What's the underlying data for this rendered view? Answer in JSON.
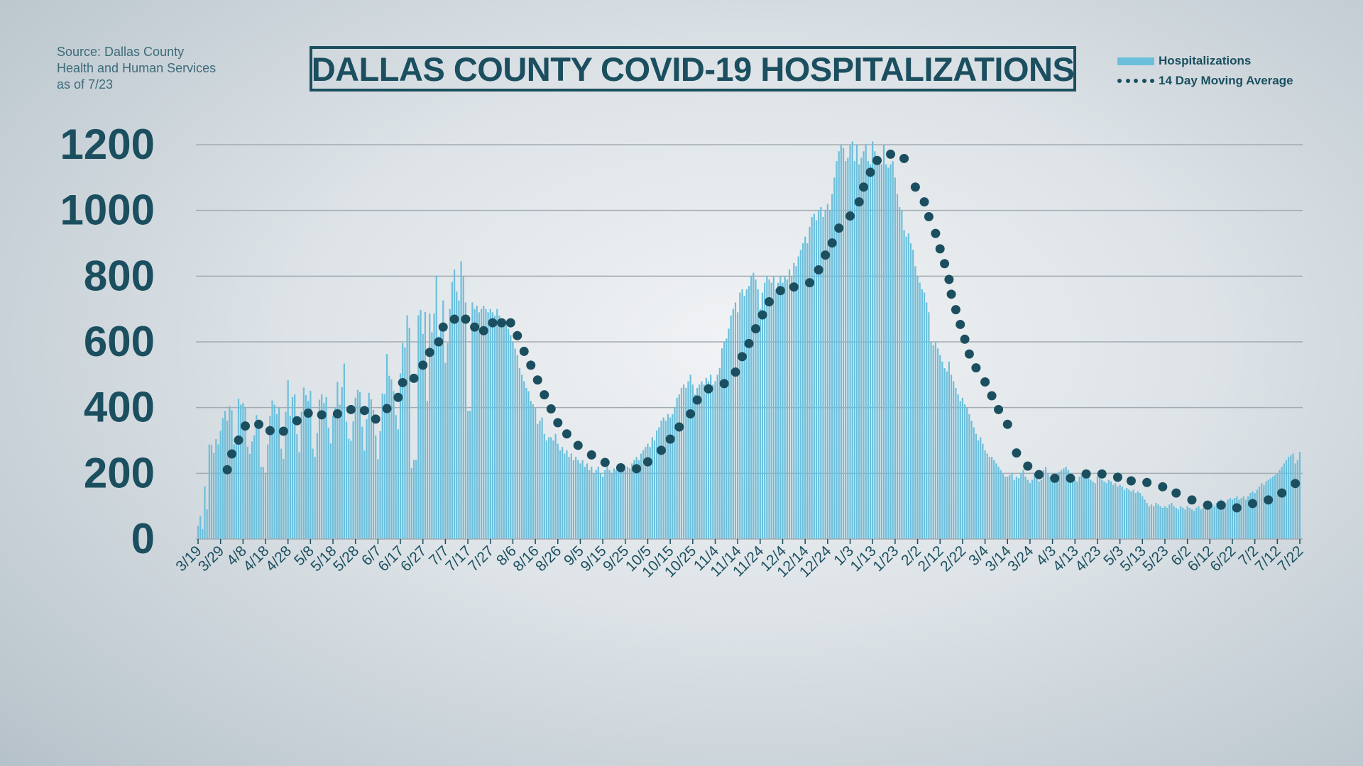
{
  "source": {
    "line1": "Source: Dallas County",
    "line2": "Health and Human Services",
    "line3": "as of 7/23"
  },
  "colors": {
    "bar": "#6cbfdb",
    "dot": "#1b4f5f",
    "text": "#1b4f5f",
    "grid": "#a3acb2"
  },
  "chart_data": {
    "type": "bar",
    "title": "DALLAS COUNTY COVID-19 HOSPITALIZATIONS",
    "xlabel": "",
    "ylabel": "",
    "ylim": [
      0,
      1200
    ],
    "yticks": [
      0,
      200,
      400,
      600,
      800,
      1000,
      1200
    ],
    "grid": true,
    "legend_position": "top-right",
    "legend": [
      "Hospitalizations",
      "14 Day Moving Average"
    ],
    "xtick_labels": [
      "3/19",
      "3/29",
      "4/8",
      "4/18",
      "4/28",
      "5/8",
      "5/18",
      "5/28",
      "6/7",
      "6/17",
      "6/27",
      "7/7",
      "7/17",
      "7/27",
      "8/6",
      "8/16",
      "8/26",
      "9/5",
      "9/15",
      "9/25",
      "10/5",
      "10/15",
      "10/25",
      "11/4",
      "11/14",
      "11/24",
      "12/4",
      "12/14",
      "12/24",
      "1/3",
      "1/13",
      "1/23",
      "2/2",
      "2/12",
      "2/22",
      "3/4",
      "3/14",
      "3/24",
      "4/3",
      "4/13",
      "4/23",
      "5/3",
      "5/13",
      "5/23",
      "6/2",
      "6/12",
      "6/22",
      "7/2",
      "7/12",
      "7/22"
    ],
    "series": [
      {
        "name": "Hospitalizations",
        "type": "bar",
        "first_date": "3/19",
        "daily_values": [
          40,
          70,
          30,
          160,
          90,
          288,
          286,
          262,
          304,
          288,
          329,
          368,
          390,
          360,
          405,
          392,
          289,
          297,
          427,
          409,
          414,
          402,
          281,
          259,
          297,
          316,
          377,
          363,
          220,
          219,
          200,
          288,
          374,
          422,
          409,
          380,
          400,
          275,
          244,
          387,
          483,
          375,
          432,
          440,
          319,
          264,
          387,
          461,
          438,
          420,
          451,
          275,
          250,
          323,
          424,
          440,
          414,
          432,
          339,
          291,
          375,
          400,
          478,
          409,
          462,
          534,
          357,
          305,
          299,
          358,
          430,
          454,
          447,
          342,
          269,
          365,
          445,
          425,
          393,
          315,
          243,
          328,
          443,
          441,
          563,
          497,
          486,
          450,
          377,
          334,
          504,
          596,
          583,
          681,
          643,
          216,
          241,
          241,
          681,
          697,
          624,
          691,
          420,
          686,
          629,
          686,
          801,
          616,
          650,
          726,
          536,
          597,
          700,
          783,
          820,
          753,
          726,
          845,
          800,
          720,
          390,
          390,
          720,
          700,
          710,
          690,
          700,
          710,
          700,
          690,
          700,
          690,
          680,
          700,
          680,
          670,
          660,
          650,
          640,
          620,
          600,
          580,
          560,
          520,
          500,
          480,
          460,
          450,
          420,
          410,
          400,
          350,
          360,
          370,
          320,
          300,
          310,
          310,
          300,
          320,
          290,
          270,
          280,
          260,
          270,
          250,
          260,
          240,
          250,
          240,
          230,
          240,
          220,
          230,
          210,
          220,
          200,
          210,
          220,
          200,
          190,
          210,
          220,
          210,
          200,
          215,
          210,
          220,
          230,
          210,
          210,
          220,
          215,
          230,
          240,
          250,
          240,
          260,
          270,
          280,
          290,
          280,
          310,
          300,
          330,
          340,
          360,
          370,
          360,
          380,
          370,
          380,
          400,
          430,
          440,
          460,
          470,
          460,
          480,
          500,
          470,
          440,
          460,
          470,
          480,
          470,
          490,
          480,
          500,
          470,
          480,
          500,
          520,
          580,
          600,
          610,
          640,
          680,
          700,
          720,
          690,
          750,
          760,
          740,
          760,
          770,
          800,
          810,
          790,
          760,
          700,
          750,
          780,
          800,
          790,
          780,
          800,
          760,
          780,
          800,
          780,
          800,
          790,
          820,
          800,
          840,
          830,
          860,
          880,
          900,
          920,
          900,
          950,
          980,
          990,
          970,
          1000,
          1010,
          980,
          1000,
          1020,
          1000,
          1050,
          1100,
          1150,
          1180,
          1200,
          1190,
          1150,
          1160,
          1200,
          1210,
          1150,
          1200,
          1140,
          1160,
          1180,
          1200,
          1150,
          1140,
          1210,
          1180,
          1150,
          1160,
          1140,
          1200,
          1140,
          1130,
          1140,
          1150,
          1100,
          1050,
          1010,
          1000,
          940,
          920,
          930,
          900,
          880,
          830,
          800,
          780,
          760,
          750,
          720,
          690,
          600,
          590,
          600,
          580,
          560,
          540,
          520,
          510,
          540,
          500,
          480,
          460,
          440,
          420,
          430,
          410,
          400,
          380,
          360,
          340,
          320,
          300,
          310,
          290,
          270,
          260,
          250,
          250,
          240,
          230,
          220,
          210,
          200,
          190,
          190,
          195,
          200,
          180,
          190,
          185,
          200,
          210,
          190,
          180,
          170,
          180,
          200,
          190,
          175,
          180,
          210,
          220,
          200,
          190,
          180,
          190,
          200,
          205,
          210,
          215,
          220,
          210,
          200,
          190,
          180,
          175,
          190,
          200,
          195,
          185,
          190,
          180,
          175,
          170,
          190,
          185,
          180,
          175,
          170,
          180,
          175,
          165,
          170,
          160,
          165,
          160,
          150,
          155,
          150,
          145,
          150,
          140,
          145,
          140,
          130,
          120,
          110,
          100,
          105,
          100,
          110,
          105,
          100,
          95,
          100,
          95,
          105,
          110,
          100,
          95,
          90,
          100,
          95,
          90,
          100,
          95,
          90,
          85,
          95,
          100,
          90,
          95,
          100,
          105,
          110,
          105,
          100,
          110,
          115,
          120,
          115,
          110,
          120,
          125,
          120,
          125,
          130,
          120,
          125,
          130,
          120,
          130,
          140,
          145,
          140,
          150,
          160,
          170,
          165,
          175,
          180,
          185,
          190,
          195,
          200,
          210,
          220,
          230,
          240,
          250,
          255,
          260,
          230,
          240,
          265
        ]
      },
      {
        "name": "14 Day Moving Average",
        "type": "dotted-line",
        "points": [
          [
            "4/1",
            211
          ],
          [
            "4/3",
            259
          ],
          [
            "4/6",
            301
          ],
          [
            "4/9",
            344
          ],
          [
            "4/15",
            349
          ],
          [
            "4/20",
            330
          ],
          [
            "4/26",
            328
          ],
          [
            "5/2",
            360
          ],
          [
            "5/7",
            383
          ],
          [
            "5/13",
            378
          ],
          [
            "5/20",
            381
          ],
          [
            "5/26",
            394
          ],
          [
            "6/1",
            391
          ],
          [
            "6/6",
            365
          ],
          [
            "6/11",
            397
          ],
          [
            "6/16",
            431
          ],
          [
            "6/18",
            476
          ],
          [
            "6/23",
            489
          ],
          [
            "6/27",
            529
          ],
          [
            "6/30",
            568
          ],
          [
            "7/4",
            600
          ],
          [
            "7/6",
            645
          ],
          [
            "7/11",
            669
          ],
          [
            "7/16",
            669
          ],
          [
            "7/20",
            645
          ],
          [
            "7/24",
            634
          ],
          [
            "7/28",
            658
          ],
          [
            "8/1",
            658
          ],
          [
            "8/5",
            658
          ],
          [
            "8/8",
            619
          ],
          [
            "8/11",
            571
          ],
          [
            "8/14",
            529
          ],
          [
            "8/17",
            484
          ],
          [
            "8/20",
            439
          ],
          [
            "8/23",
            396
          ],
          [
            "8/26",
            354
          ],
          [
            "8/30",
            320
          ],
          [
            "9/4",
            285
          ],
          [
            "9/10",
            256
          ],
          [
            "9/16",
            233
          ],
          [
            "9/23",
            217
          ],
          [
            "9/30",
            214
          ],
          [
            "10/5",
            235
          ],
          [
            "10/11",
            270
          ],
          [
            "10/15",
            304
          ],
          [
            "10/19",
            341
          ],
          [
            "10/24",
            381
          ],
          [
            "10/27",
            423
          ],
          [
            "11/1",
            457
          ],
          [
            "11/8",
            473
          ],
          [
            "11/13",
            508
          ],
          [
            "11/16",
            555
          ],
          [
            "11/19",
            595
          ],
          [
            "11/22",
            640
          ],
          [
            "11/25",
            682
          ],
          [
            "11/28",
            722
          ],
          [
            "12/3",
            756
          ],
          [
            "12/9",
            767
          ],
          [
            "12/16",
            780
          ],
          [
            "12/20",
            819
          ],
          [
            "12/23",
            864
          ],
          [
            "12/26",
            901
          ],
          [
            "12/29",
            946
          ],
          [
            "1/3",
            983
          ],
          [
            "1/7",
            1026
          ],
          [
            "1/9",
            1071
          ],
          [
            "1/12",
            1116
          ],
          [
            "1/15",
            1152
          ],
          [
            "1/21",
            1171
          ],
          [
            "1/27",
            1158
          ],
          [
            "2/1",
            1071
          ],
          [
            "2/5",
            1026
          ],
          [
            "2/7",
            981
          ],
          [
            "2/10",
            930
          ],
          [
            "2/12",
            883
          ],
          [
            "2/14",
            838
          ],
          [
            "2/16",
            790
          ],
          [
            "2/17",
            745
          ],
          [
            "2/19",
            698
          ],
          [
            "2/21",
            653
          ],
          [
            "2/23",
            608
          ],
          [
            "2/25",
            563
          ],
          [
            "2/28",
            521
          ],
          [
            "3/4",
            478
          ],
          [
            "3/7",
            436
          ],
          [
            "3/10",
            394
          ],
          [
            "3/14",
            349
          ],
          [
            "3/18",
            262
          ],
          [
            "3/23",
            222
          ],
          [
            "3/28",
            196
          ],
          [
            "4/4",
            185
          ],
          [
            "4/11",
            185
          ],
          [
            "4/18",
            198
          ],
          [
            "4/25",
            198
          ],
          [
            "5/2",
            188
          ],
          [
            "5/8",
            177
          ],
          [
            "5/15",
            172
          ],
          [
            "5/22",
            159
          ],
          [
            "5/28",
            140
          ],
          [
            "6/4",
            119
          ],
          [
            "6/11",
            103
          ],
          [
            "6/17",
            103
          ],
          [
            "6/24",
            95
          ],
          [
            "7/1",
            108
          ],
          [
            "7/8",
            119
          ],
          [
            "7/14",
            140
          ],
          [
            "7/20",
            169
          ]
        ]
      }
    ]
  }
}
